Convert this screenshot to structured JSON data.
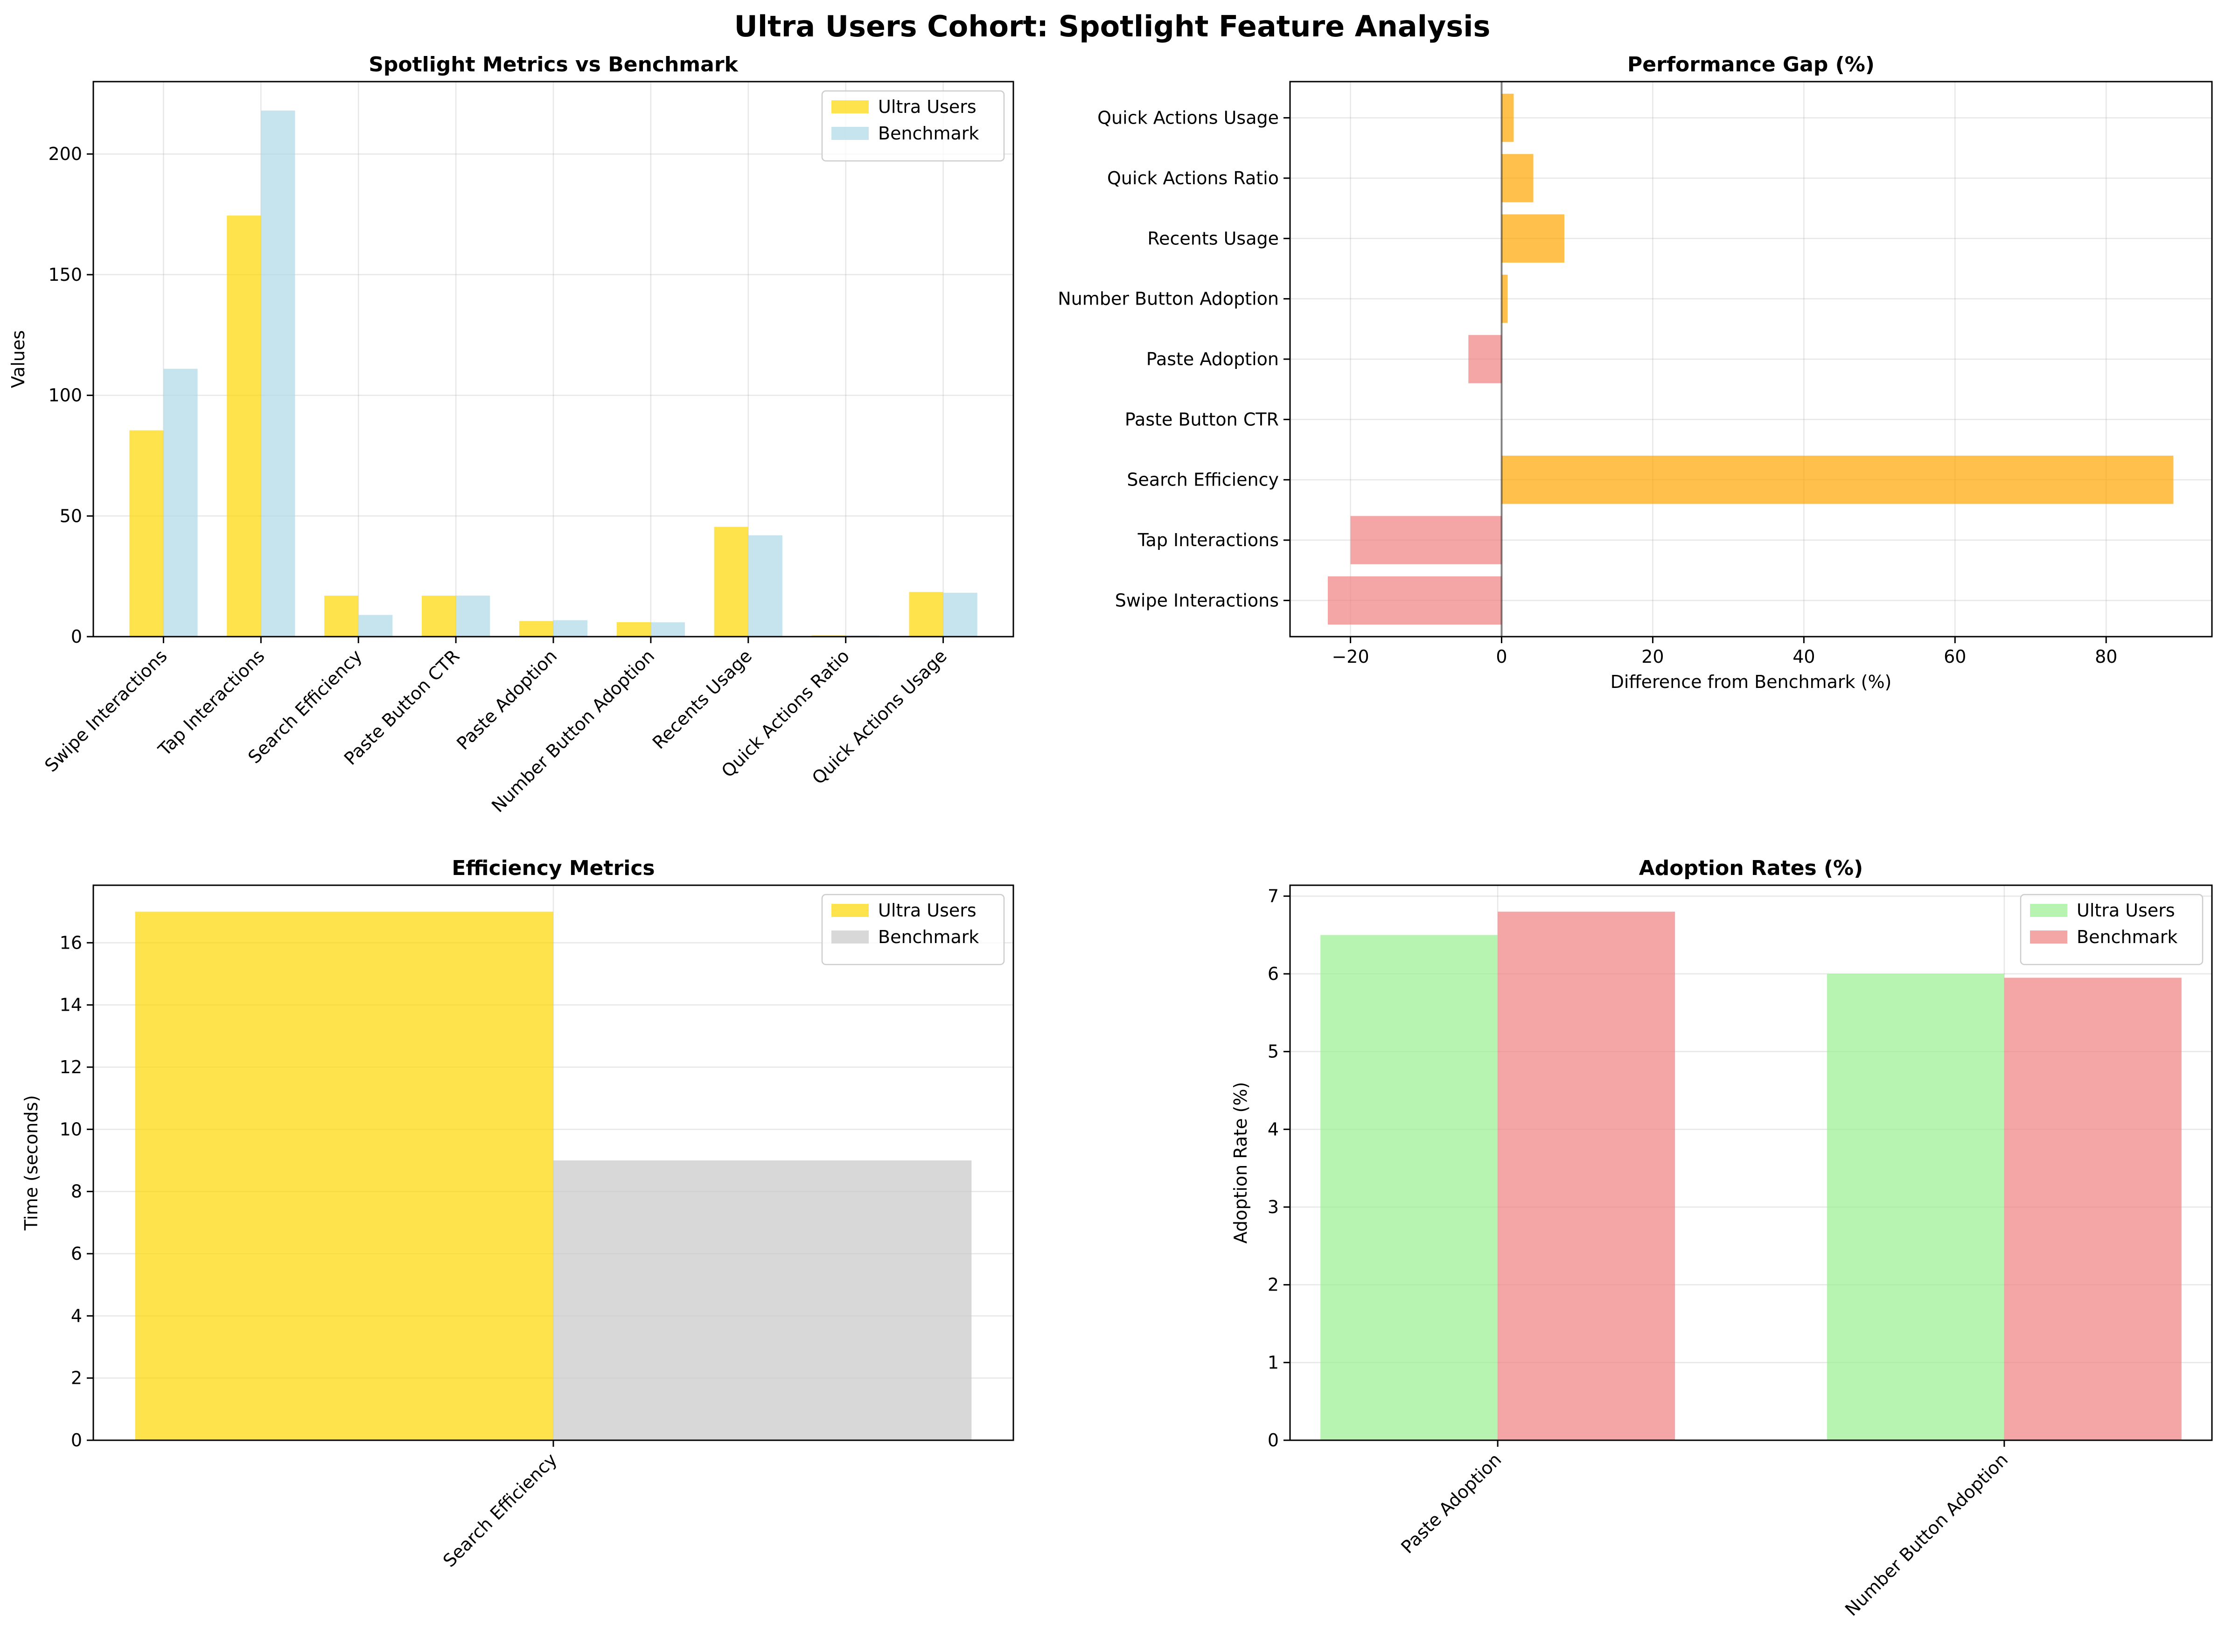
{
  "figure": {
    "title": "Ultra Users Cohort: Spotlight Feature Analysis"
  },
  "chart_data": [
    {
      "id": "metrics",
      "type": "bar",
      "title": "Spotlight Metrics vs Benchmark",
      "xlabel": "",
      "ylabel": "Values",
      "ylim": [
        0,
        230
      ],
      "yticks": [
        0,
        50,
        100,
        150,
        200
      ],
      "grid": true,
      "legend": "top-right",
      "categories": [
        "Swipe Interactions",
        "Tap Interactions",
        "Search Efficiency",
        "Paste Button CTR",
        "Paste Adoption",
        "Number Button Adoption",
        "Recents Usage",
        "Quick Actions Ratio",
        "Quick Actions Usage"
      ],
      "series": [
        {
          "name": "Ultra Users",
          "color": "#FFD700",
          "values": [
            85.5,
            174.5,
            17.0,
            17.0,
            6.5,
            6.0,
            45.5,
            0.5,
            18.5
          ]
        },
        {
          "name": "Benchmark",
          "color": "#ADD8E6",
          "values": [
            111.0,
            218.0,
            9.0,
            17.0,
            6.8,
            5.95,
            42.0,
            0.48,
            18.2
          ]
        }
      ]
    },
    {
      "id": "gap",
      "type": "bar",
      "orientation": "horizontal",
      "title": "Performance Gap (%)",
      "xlabel": "Difference from Benchmark (%)",
      "ylabel": "",
      "xlim": [
        -28,
        94
      ],
      "xticks": [
        -20,
        0,
        20,
        40,
        60,
        80
      ],
      "grid": true,
      "positive_color": "#FFA500",
      "negative_color": "#F08080",
      "categories": [
        "Swipe Interactions",
        "Tap Interactions",
        "Search Efficiency",
        "Paste Button CTR",
        "Paste Adoption",
        "Number Button Adoption",
        "Recents Usage",
        "Quick Actions Ratio",
        "Quick Actions Usage"
      ],
      "values": [
        -23.0,
        -20.0,
        88.9,
        0.0,
        -4.4,
        0.8,
        8.3,
        4.2,
        1.6
      ]
    },
    {
      "id": "efficiency",
      "type": "bar",
      "title": "Efficiency Metrics",
      "xlabel": "",
      "ylabel": "Time (seconds)",
      "ylim": [
        0,
        17.85
      ],
      "yticks": [
        0,
        2,
        4,
        6,
        8,
        10,
        12,
        14,
        16
      ],
      "grid": true,
      "legend": "top-right",
      "categories": [
        "Search Efficiency"
      ],
      "series": [
        {
          "name": "Ultra Users",
          "color": "#FFD700",
          "values": [
            17.0
          ]
        },
        {
          "name": "Benchmark",
          "color": "#C8C8C8",
          "values": [
            9.0
          ]
        }
      ]
    },
    {
      "id": "adoption",
      "type": "bar",
      "title": "Adoption Rates (%)",
      "xlabel": "",
      "ylabel": "Adoption Rate (%)",
      "ylim": [
        0,
        7.14
      ],
      "yticks": [
        0,
        1,
        2,
        3,
        4,
        5,
        6,
        7
      ],
      "grid": true,
      "legend": "top-right",
      "categories": [
        "Paste Adoption",
        "Number Button Adoption"
      ],
      "series": [
        {
          "name": "Ultra Users",
          "color": "#98EE90",
          "values": [
            6.5,
            6.0
          ]
        },
        {
          "name": "Benchmark",
          "color": "#F08080",
          "values": [
            6.8,
            5.95
          ]
        }
      ]
    }
  ]
}
